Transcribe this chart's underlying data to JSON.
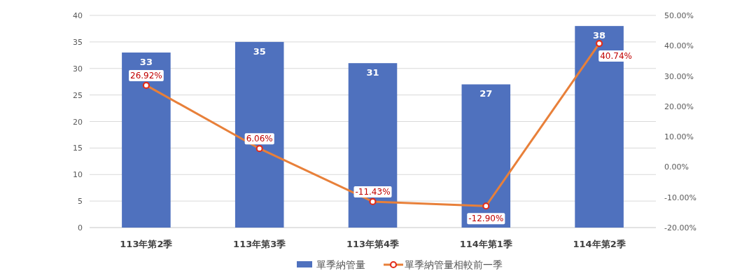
{
  "chart_data": {
    "type": "bar",
    "categories": [
      "113年第2季",
      "113年第3季",
      "113年第4季",
      "114年第1季",
      "114年第2季"
    ],
    "series": [
      {
        "name": "單季納管量",
        "color": "#4f71be",
        "values": [
          33,
          35,
          31,
          27,
          38
        ],
        "value_labels": [
          "33",
          "35",
          "31",
          "27",
          "38"
        ]
      },
      {
        "name": "單季納管量相較前一季",
        "type": "line",
        "axis": "y2",
        "color": "#e8803a",
        "marker": "circle",
        "values": [
          26.92,
          6.06,
          -11.43,
          -12.9,
          40.74
        ],
        "value_labels": [
          "26.92%",
          "6.06%",
          "-11.43%",
          "-12.90%",
          "40.74%"
        ]
      }
    ],
    "ylim": [
      0,
      40
    ],
    "yticks": [
      0,
      5,
      10,
      15,
      20,
      25,
      30,
      35,
      40
    ],
    "y2lim": [
      -20,
      50
    ],
    "y2ticks": [
      {
        "value": -20,
        "label": "-20.00%"
      },
      {
        "value": -10,
        "label": "-10.00%"
      },
      {
        "value": 0,
        "label": "0.00%"
      },
      {
        "value": 10,
        "label": "10.00%"
      },
      {
        "value": 20,
        "label": "20.00%"
      },
      {
        "value": 30,
        "label": "30.00%"
      },
      {
        "value": 40,
        "label": "40.00%"
      },
      {
        "value": 50,
        "label": "50.00%"
      }
    ],
    "grid": "y",
    "legend": "bottom"
  }
}
